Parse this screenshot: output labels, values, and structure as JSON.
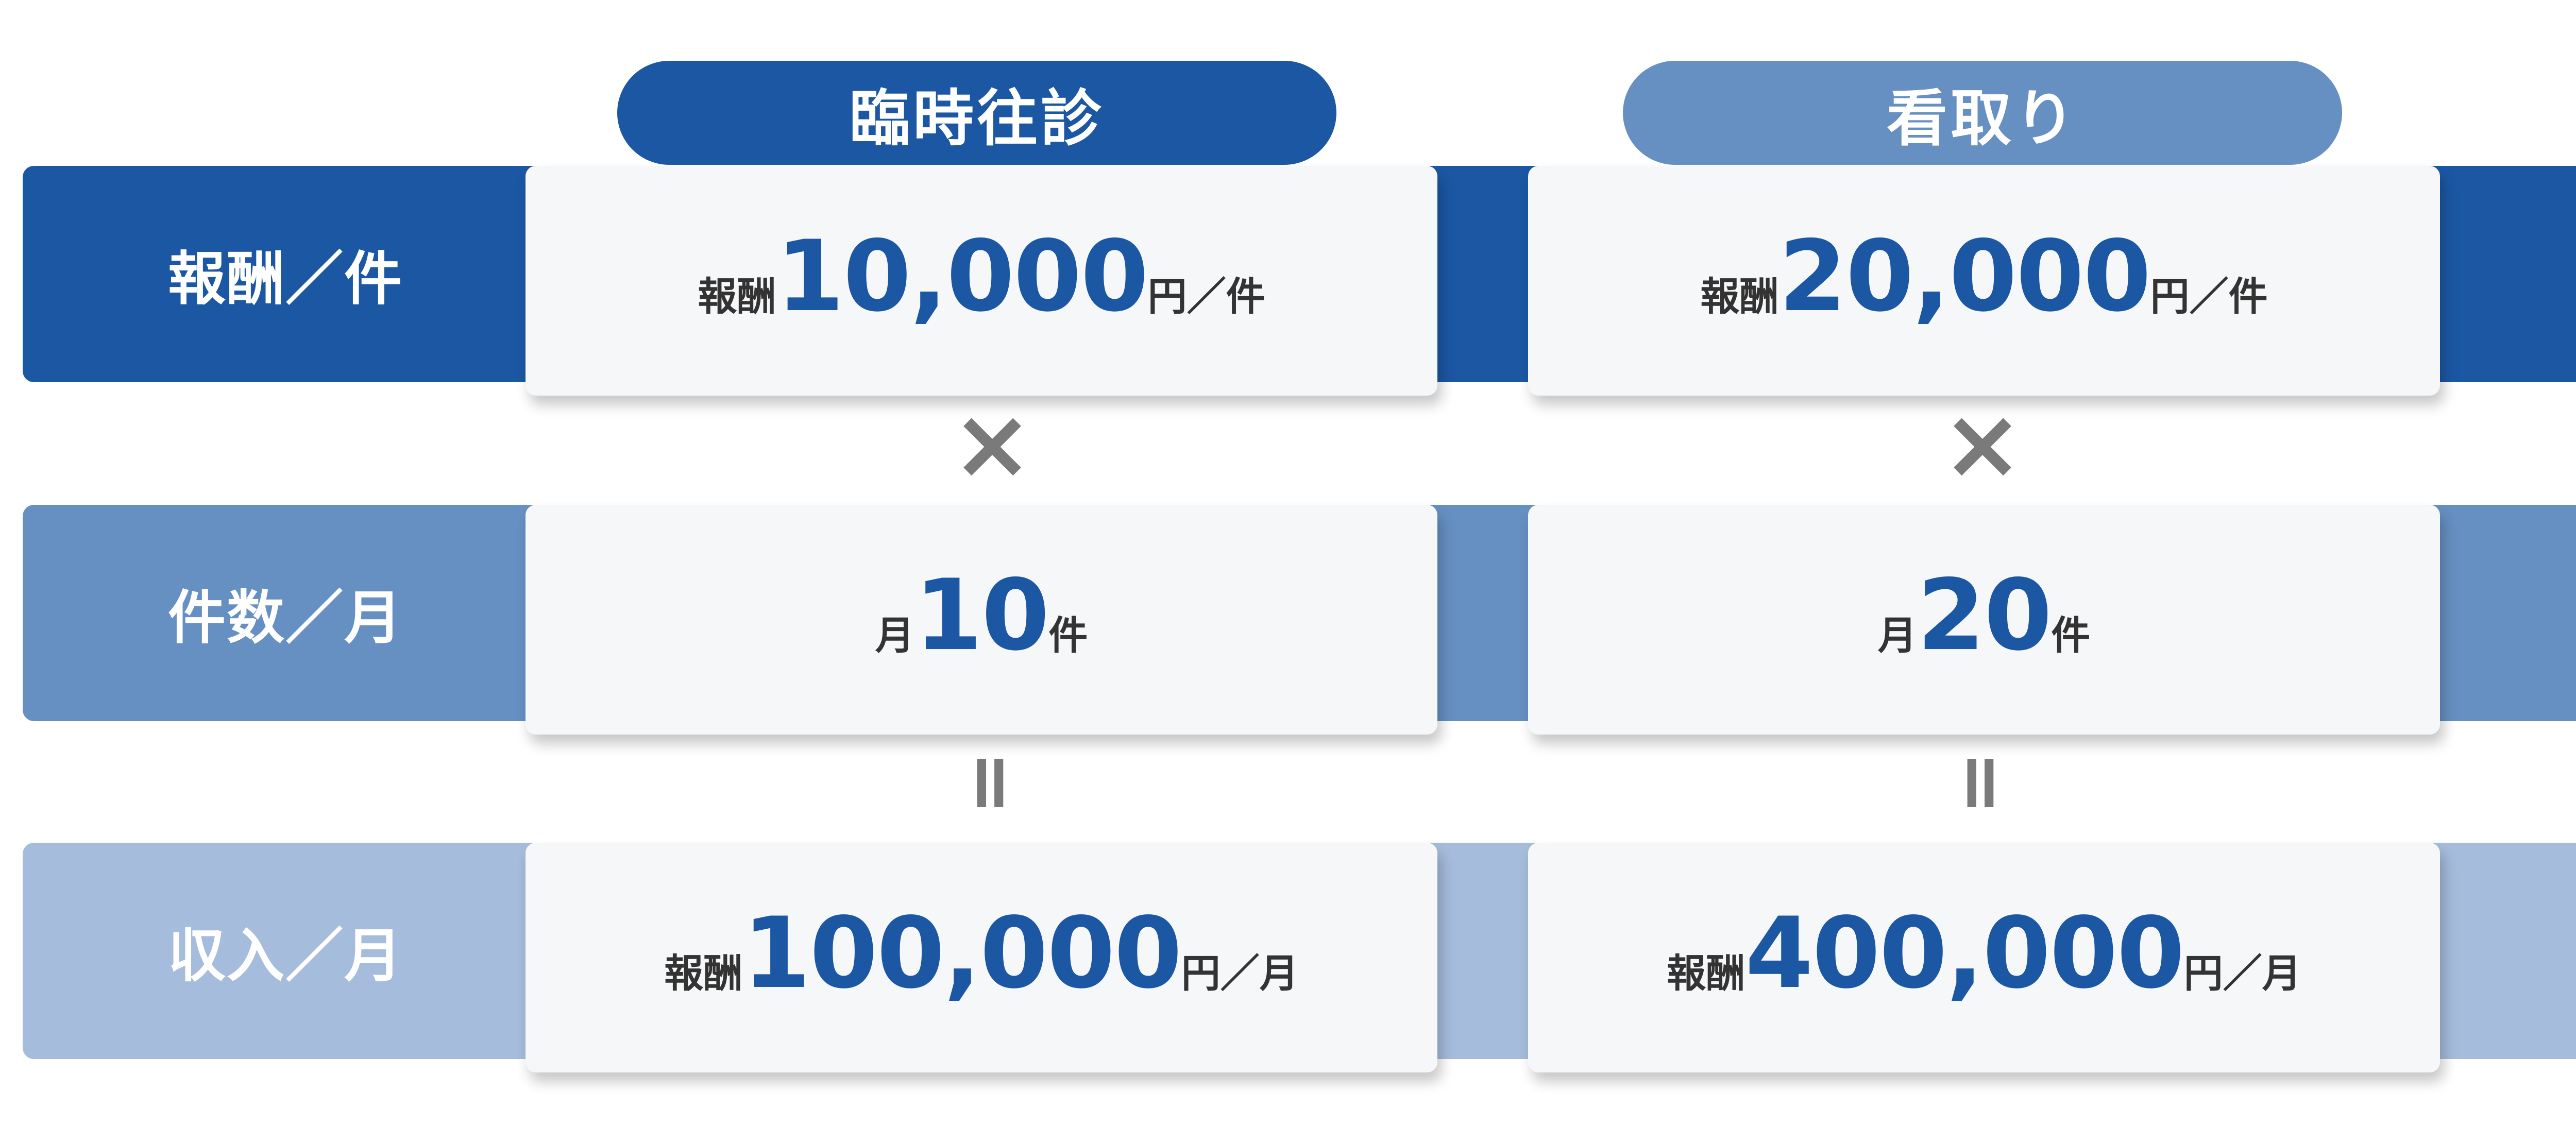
{
  "columns": [
    {
      "title": "臨時往診",
      "cells": [
        {
          "prefix": "報酬",
          "value": "10,000",
          "suffix": "円／件"
        },
        {
          "prefix": "月",
          "value": "10",
          "suffix": "件"
        },
        {
          "prefix": "報酬",
          "value": "100,000",
          "suffix": "円／月"
        }
      ]
    },
    {
      "title": "看取り",
      "cells": [
        {
          "prefix": "報酬",
          "value": "20,000",
          "suffix": "円／件"
        },
        {
          "prefix": "月",
          "value": "20",
          "suffix": "件"
        },
        {
          "prefix": "報酬",
          "value": "400,000",
          "suffix": "円／月"
        }
      ]
    }
  ],
  "rows": [
    {
      "label": "報酬／件"
    },
    {
      "label": "件数／月"
    },
    {
      "label": "収入／月"
    }
  ],
  "operators": {
    "multiply": "×",
    "equals": "="
  },
  "colors": {
    "primary": "#1c57a4",
    "secondary": "#6690c2",
    "tertiary": "#a6bcdc",
    "operator": "#7a7a7a"
  }
}
